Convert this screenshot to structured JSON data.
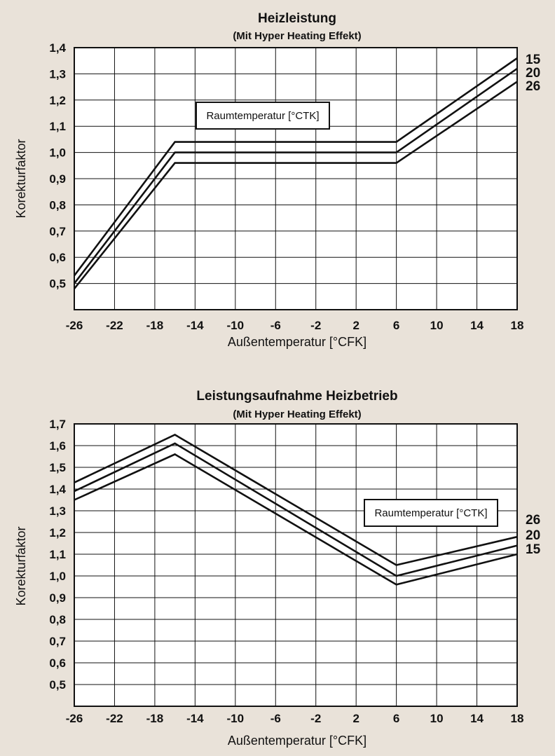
{
  "chart_data": [
    {
      "type": "line",
      "title": "Heizleistung",
      "subtitle": "(Mit Hyper Heating Effekt)",
      "xlabel": "Außentemperatur [°CFK]",
      "ylabel": "Korekturfaktor",
      "xlim": [
        -26,
        18
      ],
      "ylim": [
        0.4,
        1.4
      ],
      "x_ticks": [
        -26,
        -22,
        -18,
        -14,
        -10,
        -6,
        -2,
        2,
        6,
        10,
        14,
        18
      ],
      "x_tick_labels": [
        "-26",
        "-22",
        "-18",
        "-14",
        "-10",
        "-6",
        "-2",
        "2",
        "6",
        "10",
        "14",
        "18"
      ],
      "y_ticks": [
        0.5,
        0.6,
        0.7,
        0.8,
        0.9,
        1.0,
        1.1,
        1.2,
        1.3,
        1.4
      ],
      "y_tick_labels": [
        "0,5",
        "0,6",
        "0,7",
        "0,8",
        "0,9",
        "1,0",
        "1,1",
        "1,2",
        "1,3",
        "1,4"
      ],
      "x_grid_step": 4,
      "y_grid_step": 0.1,
      "grid": true,
      "legend_title": "Raumtemperatur [°CTK]",
      "series": [
        {
          "name": "15",
          "x": [
            -26,
            -16,
            6,
            18
          ],
          "y": [
            0.53,
            1.04,
            1.04,
            1.36
          ]
        },
        {
          "name": "20",
          "x": [
            -26,
            -16,
            6,
            18
          ],
          "y": [
            0.5,
            1.0,
            1.0,
            1.32
          ]
        },
        {
          "name": "26",
          "x": [
            -26,
            -16,
            6,
            18
          ],
          "y": [
            0.48,
            0.96,
            0.96,
            1.27
          ]
        }
      ]
    },
    {
      "type": "line",
      "title": "Leistungsaufnahme Heizbetrieb",
      "subtitle": "(Mit Hyper Heating Effekt)",
      "xlabel": "Außentemperatur [°CFK]",
      "ylabel": "Korekturfaktor",
      "xlim": [
        -26,
        18
      ],
      "ylim": [
        0.4,
        1.7
      ],
      "x_ticks": [
        -26,
        -22,
        -18,
        -14,
        -10,
        -6,
        -2,
        2,
        6,
        10,
        14,
        18
      ],
      "x_tick_labels": [
        "-26",
        "-22",
        "-18",
        "-14",
        "-10",
        "-6",
        "-2",
        "2",
        "6",
        "10",
        "14",
        "18"
      ],
      "y_ticks": [
        0.5,
        0.6,
        0.7,
        0.8,
        0.9,
        1.0,
        1.1,
        1.2,
        1.3,
        1.4,
        1.5,
        1.6,
        1.7
      ],
      "y_tick_labels": [
        "0,5",
        "0,6",
        "0,7",
        "0,8",
        "0,9",
        "1,0",
        "1,1",
        "1,2",
        "1,3",
        "1,4",
        "1,5",
        "1,6",
        "1,7"
      ],
      "x_grid_step": 4,
      "y_grid_step": 0.1,
      "grid": true,
      "legend_title": "Raumtemperatur [°CTK]",
      "series": [
        {
          "name": "26",
          "x": [
            -26,
            -16,
            6,
            18
          ],
          "y": [
            1.43,
            1.65,
            1.05,
            1.18
          ]
        },
        {
          "name": "20",
          "x": [
            -26,
            -16,
            6,
            18
          ],
          "y": [
            1.39,
            1.61,
            1.0,
            1.14
          ]
        },
        {
          "name": "15",
          "x": [
            -26,
            -16,
            6,
            18
          ],
          "y": [
            1.35,
            1.56,
            0.96,
            1.1
          ]
        }
      ]
    }
  ]
}
